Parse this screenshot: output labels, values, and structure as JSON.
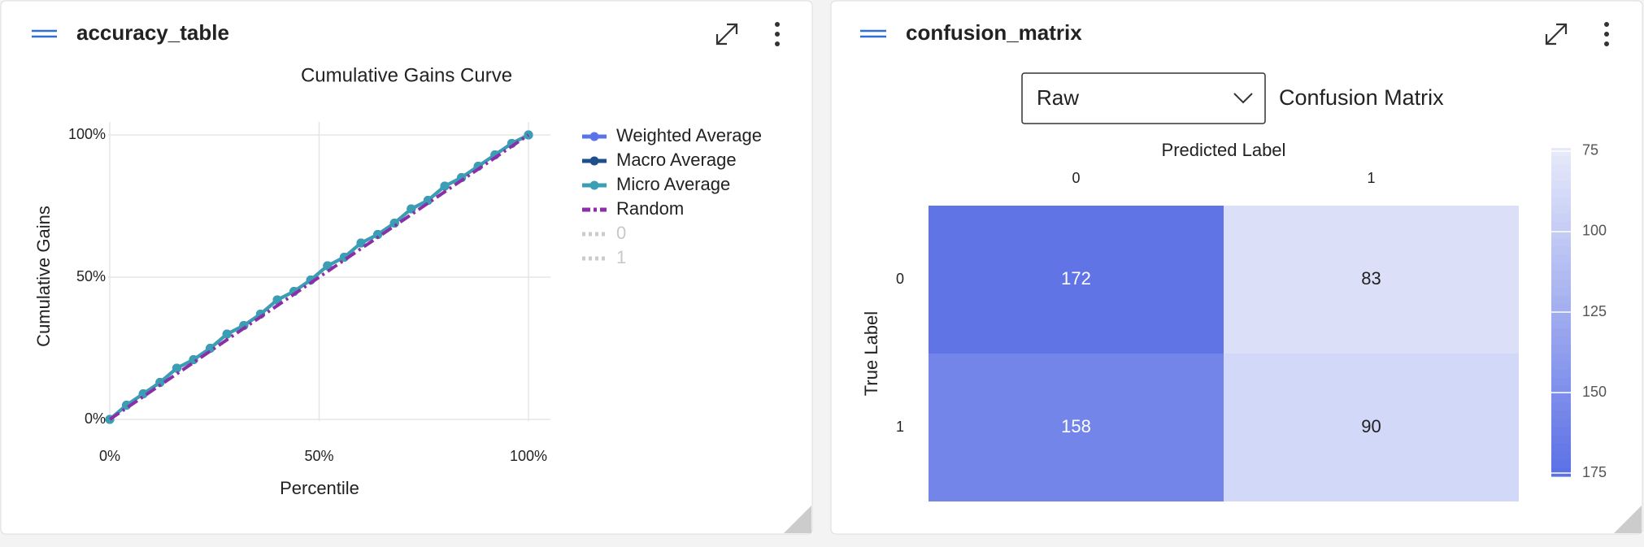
{
  "cards": [
    {
      "title": "accuracy_table",
      "chart": {
        "type": "line",
        "title": "Cumulative Gains Curve",
        "x_label": "Percentile",
        "y_label": "Cumulative Gains",
        "x": [
          0,
          4,
          8,
          12,
          16,
          20,
          24,
          28,
          32,
          36,
          40,
          44,
          48,
          52,
          56,
          60,
          64,
          68,
          72,
          76,
          80,
          84,
          88,
          92,
          96,
          100
        ],
        "series": [
          {
            "name": "Weighted Average",
            "color": "#5b73e8",
            "line": "solid",
            "markers": true,
            "values": [
              0,
              5,
              9,
              13,
              18,
              21,
              25,
              30,
              33,
              37,
              42,
              45,
              49,
              54,
              57,
              62,
              65,
              69,
              74,
              77,
              82,
              85,
              89,
              93,
              97,
              100
            ]
          },
          {
            "name": "Macro Average",
            "color": "#1f4e8c",
            "line": "solid",
            "markers": true,
            "values": [
              0,
              5,
              9,
              13,
              18,
              21,
              25,
              30,
              33,
              37,
              42,
              45,
              49,
              54,
              57,
              62,
              65,
              69,
              74,
              77,
              82,
              85,
              89,
              93,
              97,
              100
            ]
          },
          {
            "name": "Micro Average",
            "color": "#3a9fb5",
            "line": "solid",
            "markers": true,
            "values": [
              0,
              5,
              9,
              13,
              18,
              21,
              25,
              30,
              33,
              37,
              42,
              45,
              49,
              54,
              57,
              62,
              65,
              69,
              74,
              77,
              82,
              85,
              89,
              93,
              97,
              100
            ]
          },
          {
            "name": "Random",
            "color": "#8b2fa8",
            "line": "dashdot",
            "markers": false,
            "x": [
              0,
              100
            ],
            "values": [
              0,
              100
            ]
          },
          {
            "name": "0",
            "color": "#cccccc",
            "line": "dot",
            "hidden": true
          },
          {
            "name": "1",
            "color": "#cccccc",
            "line": "dot",
            "hidden": true
          }
        ],
        "xlim": [
          0,
          100
        ],
        "ylim": [
          0,
          100
        ],
        "xticks": [
          {
            "value": 0,
            "label": "0%"
          },
          {
            "value": 50,
            "label": "50%"
          },
          {
            "value": 100,
            "label": "100%"
          }
        ],
        "yticks": [
          {
            "value": 0,
            "label": "0%"
          },
          {
            "value": 50,
            "label": "50%"
          },
          {
            "value": 100,
            "label": "100%"
          }
        ],
        "grid": true,
        "legend": "right"
      }
    },
    {
      "title": "confusion_matrix",
      "chart": {
        "type": "heatmap",
        "title": "Confusion Matrix",
        "dropdown": "Raw",
        "x_label": "Predicted Label",
        "y_label": "True Label",
        "x_categories": [
          "0",
          "1"
        ],
        "y_categories": [
          "0",
          "1"
        ],
        "z": [
          [
            172,
            83
          ],
          [
            158,
            90
          ]
        ],
        "zlim": [
          74,
          176
        ],
        "zticks": [
          75,
          100,
          125,
          150,
          175
        ],
        "colorscale": [
          "#e8ebfa",
          "#5a6fe5"
        ]
      }
    }
  ]
}
